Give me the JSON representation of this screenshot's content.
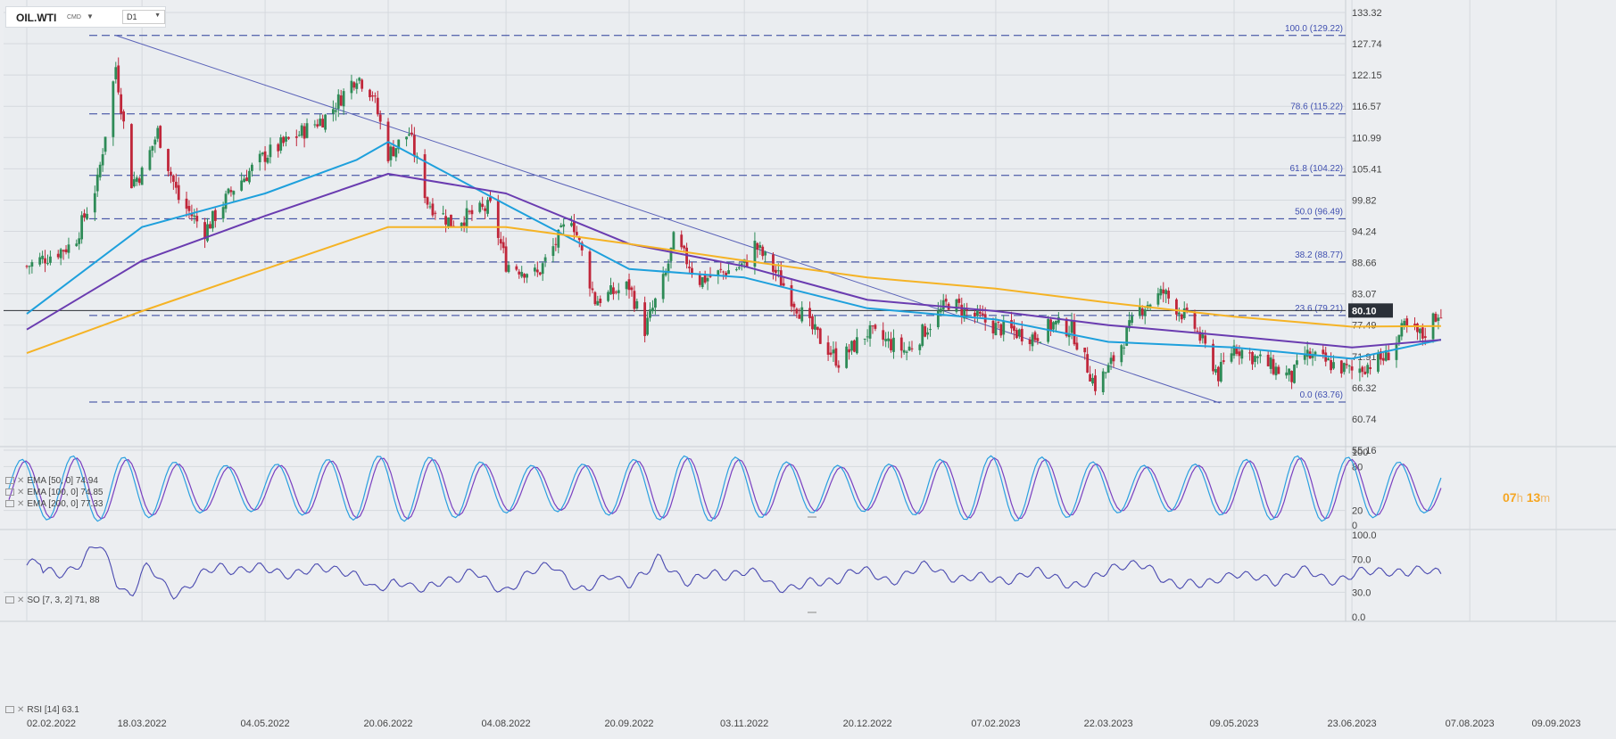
{
  "symbol": "OIL.WTI",
  "symbol_type": "CMD",
  "timeframe": "D1",
  "timer": {
    "hours": "07",
    "h_unit": "h",
    "minutes": "13",
    "m_unit": "m"
  },
  "last_price": "80.10",
  "indicators": {
    "ema50": "EMA [50, 0] 74.94",
    "ema100": "EMA [100, 0] 74.85",
    "ema200": "EMA [200, 0] 77.33",
    "so": "SO [7, 3, 2] 71, 88",
    "rsi": "RSI [14] 63.1"
  },
  "colors": {
    "bull": "#2e8b57",
    "bear": "#c0263a",
    "ema50": "#1ea0dc",
    "ema100": "#6a3cb0",
    "ema200": "#f5b325",
    "trend": "#5a62b8",
    "fib": "#2c3e9a",
    "rsi": "#4a4ab0",
    "so_k": "#2aa0e0",
    "so_d": "#7a40c0"
  },
  "chart_data": [
    {
      "type": "candlestick",
      "title": "OIL.WTI",
      "x_ticks": [
        "02.02.2022",
        "18.03.2022",
        "04.05.2022",
        "20.06.2022",
        "04.08.2022",
        "20.09.2022",
        "03.11.2022",
        "20.12.2022",
        "07.02.2023",
        "22.03.2023",
        "09.05.2023",
        "23.06.2023",
        "07.08.2023",
        "09.09.2023"
      ],
      "y_ticks": [
        "133.32",
        "127.74",
        "122.15",
        "116.57",
        "110.99",
        "105.41",
        "99.82",
        "94.24",
        "88.66",
        "83.07",
        "77.49",
        "71.91",
        "66.32",
        "60.74",
        "55.16"
      ],
      "ylim": [
        55.16,
        133.32
      ],
      "approx_close_path": [
        {
          "x": "02.02.2022",
          "y": 88.0
        },
        {
          "x": "20.02.2022",
          "y": 92.0
        },
        {
          "x": "01.03.2022",
          "y": 103.0
        },
        {
          "x": "08.03.2022",
          "y": 123.7
        },
        {
          "x": "14.03.2022",
          "y": 103.0
        },
        {
          "x": "18.03.2022",
          "y": 104.7
        },
        {
          "x": "24.03.2022",
          "y": 112.0
        },
        {
          "x": "01.04.2022",
          "y": 100.0
        },
        {
          "x": "11.04.2022",
          "y": 94.3
        },
        {
          "x": "22.04.2022",
          "y": 102.0
        },
        {
          "x": "04.05.2022",
          "y": 107.8
        },
        {
          "x": "15.05.2022",
          "y": 111.0
        },
        {
          "x": "28.05.2022",
          "y": 115.0
        },
        {
          "x": "08.06.2022",
          "y": 122.1
        },
        {
          "x": "14.06.2022",
          "y": 118.9
        },
        {
          "x": "20.06.2022",
          "y": 108.0
        },
        {
          "x": "28.06.2022",
          "y": 111.8
        },
        {
          "x": "05.07.2022",
          "y": 99.5
        },
        {
          "x": "14.07.2022",
          "y": 95.8
        },
        {
          "x": "29.07.2022",
          "y": 98.6
        },
        {
          "x": "04.08.2022",
          "y": 88.5
        },
        {
          "x": "16.08.2022",
          "y": 86.5
        },
        {
          "x": "29.08.2022",
          "y": 97.0
        },
        {
          "x": "07.09.2022",
          "y": 81.9
        },
        {
          "x": "20.09.2022",
          "y": 84.5
        },
        {
          "x": "26.09.2022",
          "y": 76.7
        },
        {
          "x": "04.10.2022",
          "y": 86.5
        },
        {
          "x": "07.10.2022",
          "y": 92.6
        },
        {
          "x": "17.10.2022",
          "y": 85.5
        },
        {
          "x": "03.11.2022",
          "y": 88.2
        },
        {
          "x": "07.11.2022",
          "y": 91.8
        },
        {
          "x": "15.11.2022",
          "y": 86.9
        },
        {
          "x": "28.11.2022",
          "y": 77.2
        },
        {
          "x": "09.12.2022",
          "y": 71.0
        },
        {
          "x": "20.12.2022",
          "y": 76.2
        },
        {
          "x": "04.01.2023",
          "y": 72.8
        },
        {
          "x": "20.01.2023",
          "y": 81.6
        },
        {
          "x": "07.02.2023",
          "y": 77.1
        },
        {
          "x": "22.02.2023",
          "y": 75.4
        },
        {
          "x": "01.03.2023",
          "y": 77.7
        },
        {
          "x": "08.03.2023",
          "y": 76.7
        },
        {
          "x": "17.03.2023",
          "y": 66.7
        },
        {
          "x": "22.03.2023",
          "y": 69.7
        },
        {
          "x": "03.04.2023",
          "y": 80.4
        },
        {
          "x": "12.04.2023",
          "y": 83.3
        },
        {
          "x": "24.04.2023",
          "y": 77.1
        },
        {
          "x": "03.05.2023",
          "y": 68.6
        },
        {
          "x": "09.05.2023",
          "y": 73.7
        },
        {
          "x": "31.05.2023",
          "y": 68.1
        },
        {
          "x": "05.06.2023",
          "y": 72.2
        },
        {
          "x": "23.06.2023",
          "y": 69.2
        },
        {
          "x": "06.07.2023",
          "y": 71.8
        },
        {
          "x": "13.07.2023",
          "y": 77.0
        },
        {
          "x": "20.07.2023",
          "y": 75.5
        },
        {
          "x": "24.07.2023",
          "y": 78.7
        },
        {
          "x": "27.07.2023",
          "y": 80.1
        }
      ],
      "fib_levels": [
        {
          "label": "100.0 (129.22)",
          "value": 129.22
        },
        {
          "label": "78.6 (115.22)",
          "value": 115.22
        },
        {
          "label": "61.8 (104.22)",
          "value": 104.22
        },
        {
          "label": "50.0 (96.49)",
          "value": 96.49
        },
        {
          "label": "38.2 (88.77)",
          "value": 88.77
        },
        {
          "label": "23.6 (79.21)",
          "value": 79.21
        },
        {
          "label": "0.0 (63.76)",
          "value": 63.76
        }
      ],
      "trendline": [
        {
          "x": "08.03.2022",
          "y": 129.22
        },
        {
          "x": "24.04.2023",
          "y": 63.76
        }
      ],
      "current_price_line": 80.1,
      "series": [
        {
          "name": "EMA [50, 0]",
          "last": 74.94,
          "points": [
            {
              "x": "02.02.2022",
              "y": 79.5
            },
            {
              "x": "18.03.2022",
              "y": 95.0
            },
            {
              "x": "04.05.2022",
              "y": 101.0
            },
            {
              "x": "08.06.2022",
              "y": 107.0
            },
            {
              "x": "20.06.2022",
              "y": 110.2
            },
            {
              "x": "04.08.2022",
              "y": 99.0
            },
            {
              "x": "20.09.2022",
              "y": 87.5
            },
            {
              "x": "03.11.2022",
              "y": 86.0
            },
            {
              "x": "20.12.2022",
              "y": 80.5
            },
            {
              "x": "07.02.2023",
              "y": 78.5
            },
            {
              "x": "22.03.2023",
              "y": 74.5
            },
            {
              "x": "09.05.2023",
              "y": 73.5
            },
            {
              "x": "23.06.2023",
              "y": 71.5
            },
            {
              "x": "27.07.2023",
              "y": 74.9
            }
          ]
        },
        {
          "name": "EMA [100, 0]",
          "last": 74.85,
          "points": [
            {
              "x": "02.02.2022",
              "y": 76.7
            },
            {
              "x": "18.03.2022",
              "y": 89.0
            },
            {
              "x": "04.05.2022",
              "y": 97.0
            },
            {
              "x": "20.06.2022",
              "y": 104.5
            },
            {
              "x": "04.08.2022",
              "y": 101.0
            },
            {
              "x": "20.09.2022",
              "y": 92.0
            },
            {
              "x": "03.11.2022",
              "y": 88.0
            },
            {
              "x": "20.12.2022",
              "y": 82.0
            },
            {
              "x": "07.02.2023",
              "y": 80.0
            },
            {
              "x": "22.03.2023",
              "y": 77.5
            },
            {
              "x": "09.05.2023",
              "y": 75.5
            },
            {
              "x": "23.06.2023",
              "y": 73.5
            },
            {
              "x": "27.07.2023",
              "y": 74.85
            }
          ]
        },
        {
          "name": "EMA [200, 0]",
          "last": 77.33,
          "points": [
            {
              "x": "02.02.2022",
              "y": 72.5
            },
            {
              "x": "18.03.2022",
              "y": 80.0
            },
            {
              "x": "04.05.2022",
              "y": 87.5
            },
            {
              "x": "20.06.2022",
              "y": 95.0
            },
            {
              "x": "04.08.2022",
              "y": 95.0
            },
            {
              "x": "20.09.2022",
              "y": 92.0
            },
            {
              "x": "03.11.2022",
              "y": 89.0
            },
            {
              "x": "20.12.2022",
              "y": 86.0
            },
            {
              "x": "07.02.2023",
              "y": 84.0
            },
            {
              "x": "22.03.2023",
              "y": 81.5
            },
            {
              "x": "09.05.2023",
              "y": 79.0
            },
            {
              "x": "23.06.2023",
              "y": 77.2
            },
            {
              "x": "27.07.2023",
              "y": 77.33
            }
          ]
        }
      ]
    },
    {
      "type": "line",
      "title": "SO [7, 3, 2]",
      "y_ticks": [
        "100",
        "80",
        "20",
        "0"
      ],
      "ylim": [
        0,
        100
      ],
      "last_values": {
        "k": 71,
        "d": 88
      }
    },
    {
      "type": "line",
      "title": "RSI [14]",
      "y_ticks": [
        "100.0",
        "70.0",
        "30.0",
        "0.0"
      ],
      "ylim": [
        0,
        100
      ],
      "last_value": 63.1
    }
  ]
}
